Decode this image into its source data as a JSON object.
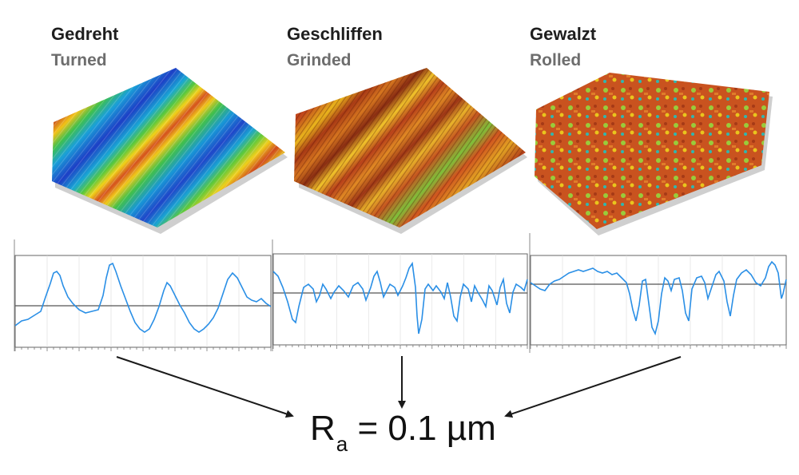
{
  "samples": [
    {
      "label_de": "Gedreht",
      "label_en": "Turned"
    },
    {
      "label_de": "Geschliffen",
      "label_en": "Grinded"
    },
    {
      "label_de": "Gewalzt",
      "label_en": "Rolled"
    }
  ],
  "formula": {
    "symbol": "R",
    "subscript": "a",
    "equals": "=",
    "value": "0.1",
    "unit": "µm"
  },
  "colors": {
    "profile_line": "#2a8fe6",
    "mean_line": "#555555",
    "arrow": "#1a1a1a",
    "grid": "#dcdcdc"
  }
}
